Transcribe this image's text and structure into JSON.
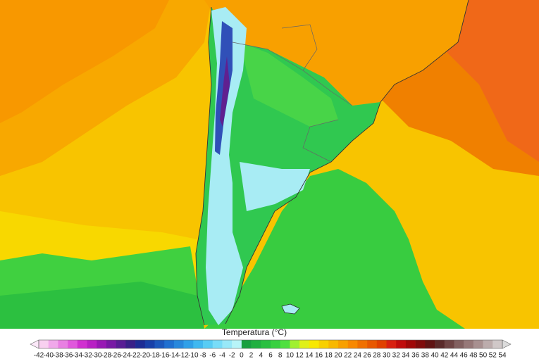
{
  "colorbar": {
    "title": "Temperatura (°C)",
    "ticks": [
      -42,
      -40,
      -38,
      -36,
      -34,
      -32,
      -30,
      -28,
      -26,
      -24,
      -22,
      -20,
      -18,
      -16,
      -14,
      -12,
      -10,
      -8,
      -6,
      -4,
      -2,
      0,
      2,
      4,
      6,
      8,
      10,
      12,
      14,
      16,
      18,
      20,
      22,
      24,
      26,
      28,
      30,
      32,
      34,
      36,
      38,
      40,
      42,
      44,
      46,
      48,
      50,
      52,
      54
    ],
    "colors": [
      "#f8d0f0",
      "#f0a8ea",
      "#e880e2",
      "#e058dc",
      "#d030d0",
      "#b820c4",
      "#9818b4",
      "#7818a4",
      "#581c94",
      "#382088",
      "#1c2c94",
      "#1840a8",
      "#1c58bc",
      "#2070d0",
      "#2888dc",
      "#30a0e8",
      "#40b8f0",
      "#58ccf4",
      "#78dcf8",
      "#98e8f8",
      "#b8f4f8",
      "#18a040",
      "#20b040",
      "#28c040",
      "#38d040",
      "#50e040",
      "#a0f030",
      "#e0f018",
      "#f8e800",
      "#f8d000",
      "#f8b800",
      "#f8a000",
      "#f88800",
      "#f07000",
      "#e85800",
      "#e04000",
      "#d82010",
      "#c00c0c",
      "#a00808",
      "#800c0c",
      "#601414",
      "#5a2a2a",
      "#6e4444",
      "#826060",
      "#967878",
      "#a89090",
      "#bcacac",
      "#d0c8c8"
    ],
    "under_color": "#fbe8f8",
    "over_color": "#dcdcdc"
  }
}
